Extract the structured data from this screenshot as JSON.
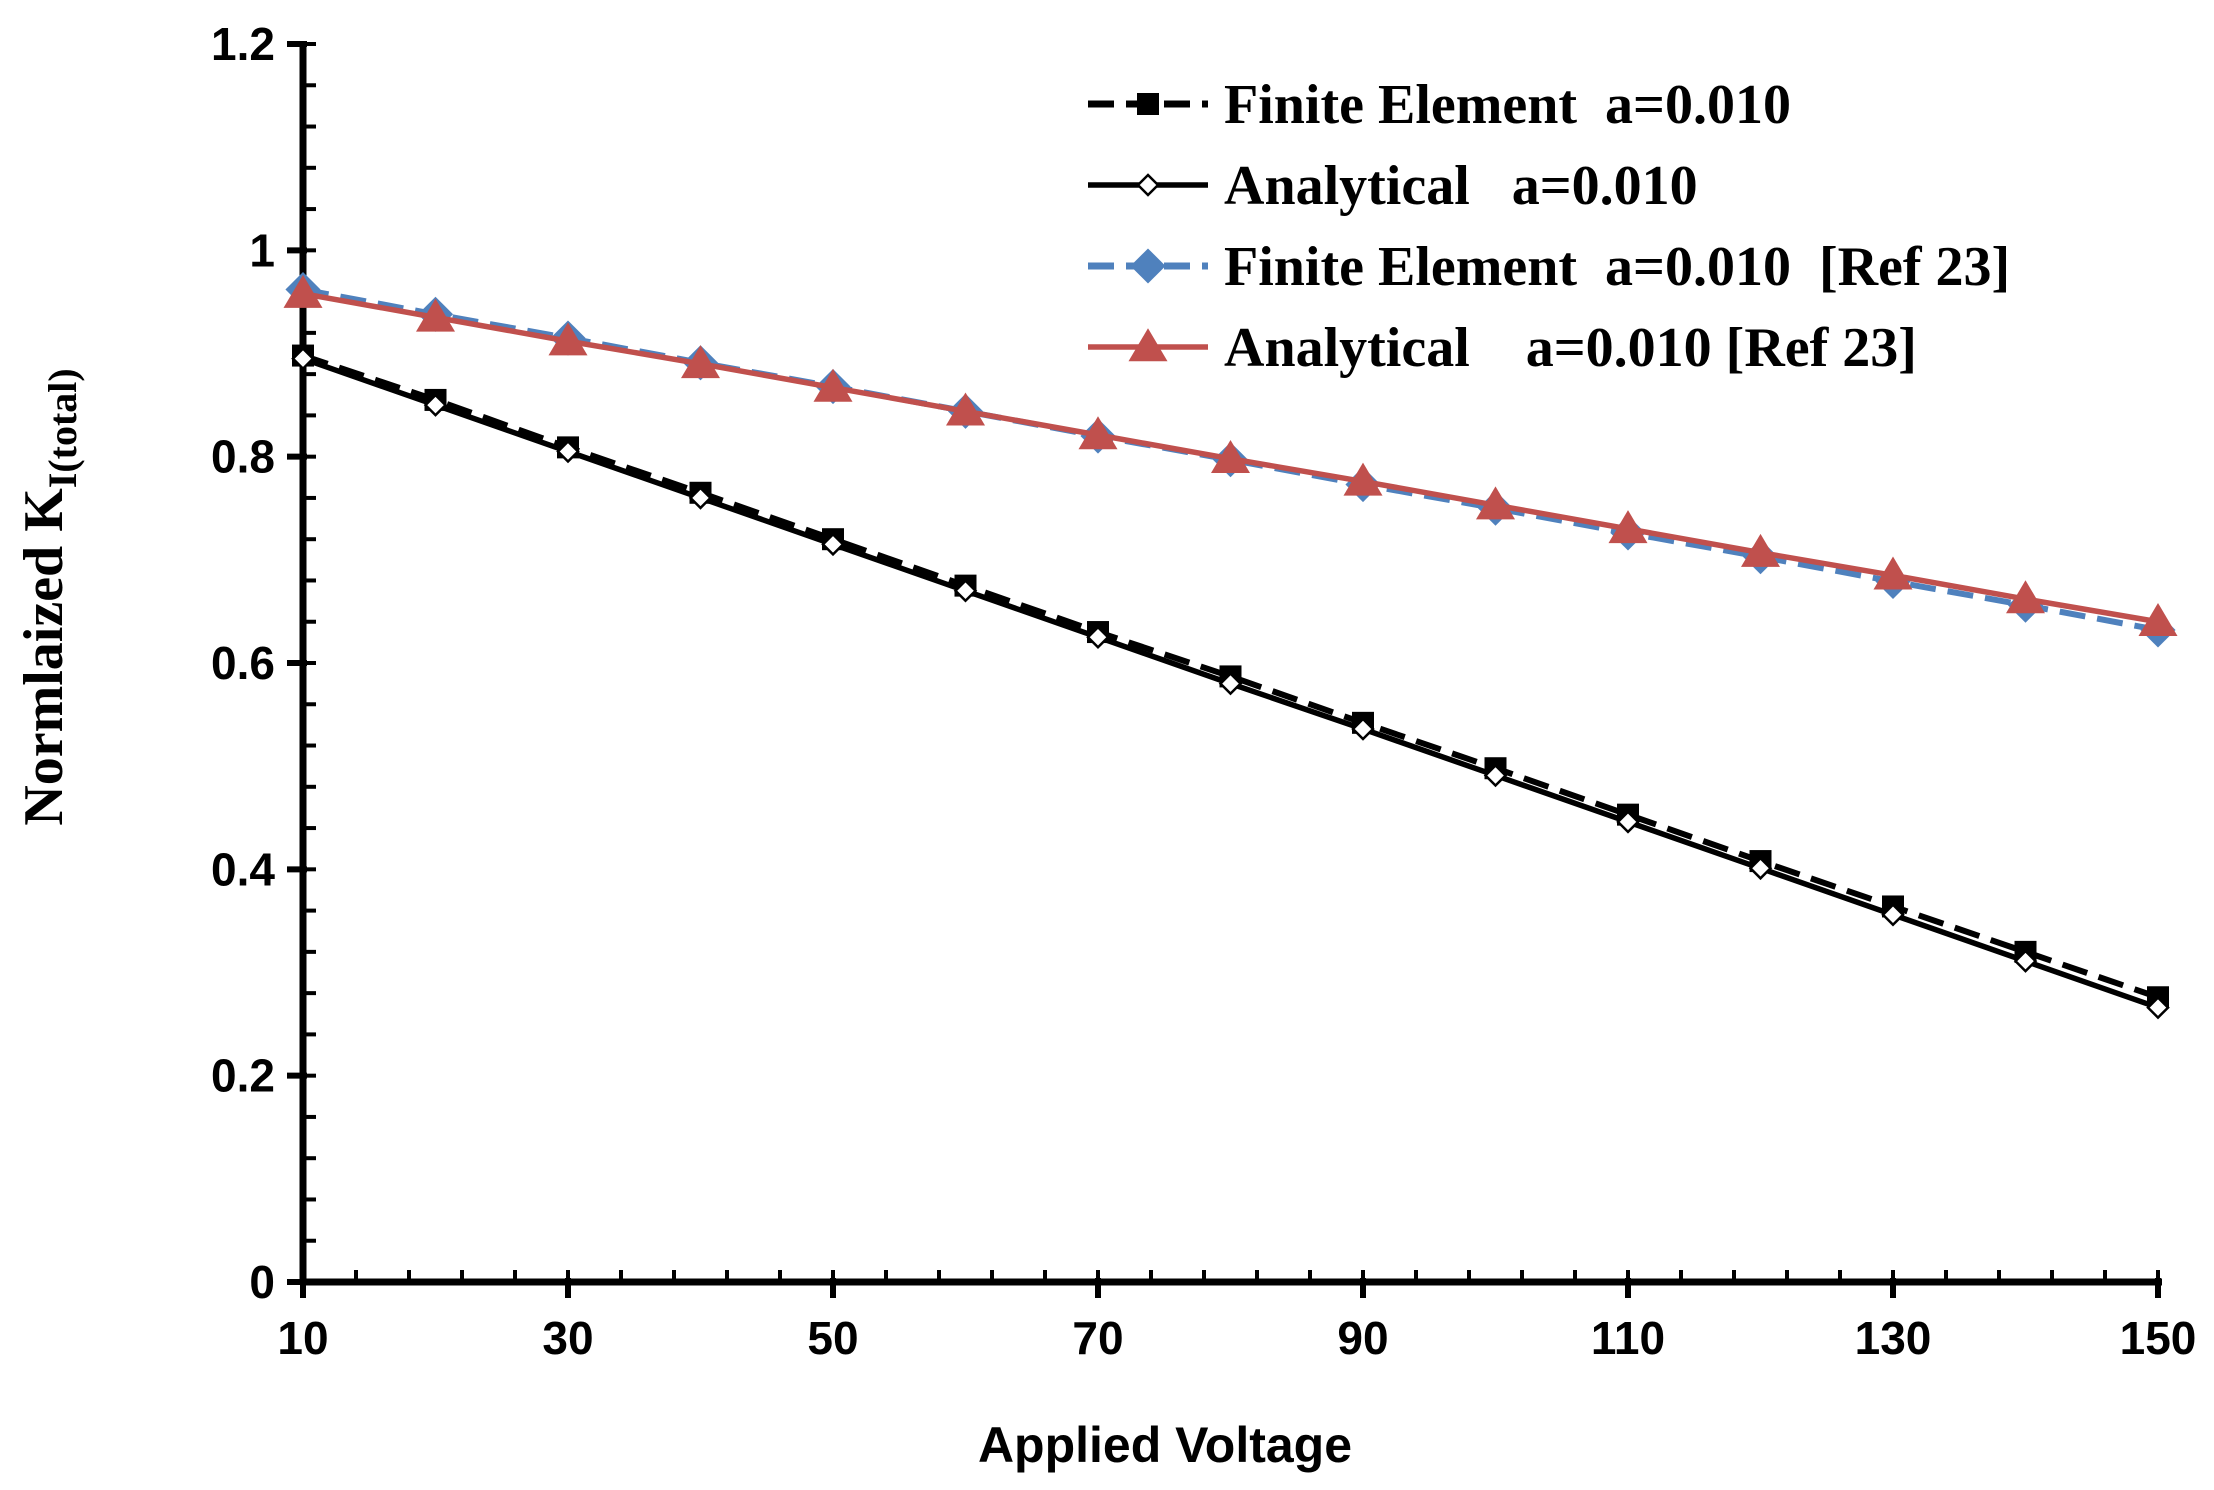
{
  "chart_data": {
    "type": "line",
    "title": "",
    "xlabel": "Applied Voltage",
    "ylabel": {
      "main": "Normlaized  K",
      "subscript": "I(total)"
    },
    "xlim": [
      10,
      150
    ],
    "ylim": [
      0,
      1.2
    ],
    "x_ticks": [
      "10",
      "30",
      "50",
      "70",
      "90",
      "110",
      "130",
      "150"
    ],
    "y_ticks": [
      "0",
      "0.2",
      "0.4",
      "0.6",
      "0.8",
      "1",
      "1.2"
    ],
    "x": [
      10,
      20,
      30,
      40,
      50,
      60,
      70,
      80,
      90,
      100,
      110,
      120,
      130,
      140,
      150
    ],
    "series": [
      {
        "name": "Finite Element  a=0.010",
        "color": "#000000",
        "style": "dashed",
        "marker": "square",
        "values": [
          0.898,
          0.855,
          0.809,
          0.765,
          0.72,
          0.675,
          0.63,
          0.587,
          0.542,
          0.498,
          0.453,
          0.408,
          0.364,
          0.32,
          0.276
        ]
      },
      {
        "name": "Analytical   a=0.010",
        "color": "#000000",
        "style": "solid",
        "marker": "diamond-open",
        "values": [
          0.895,
          0.85,
          0.805,
          0.76,
          0.715,
          0.67,
          0.625,
          0.58,
          0.536,
          0.491,
          0.446,
          0.401,
          0.356,
          0.311,
          0.266
        ]
      },
      {
        "name": "Finite Element  a=0.010  [Ref 23]",
        "color": "#4f81bd",
        "style": "dashed",
        "marker": "diamond",
        "values": [
          0.962,
          0.938,
          0.915,
          0.891,
          0.868,
          0.844,
          0.82,
          0.797,
          0.773,
          0.75,
          0.726,
          0.703,
          0.679,
          0.656,
          0.632
        ]
      },
      {
        "name": "Analytical    a=0.010 [Ref 23]",
        "color": "#c0504d",
        "style": "solid",
        "marker": "triangle",
        "values": [
          0.958,
          0.935,
          0.912,
          0.89,
          0.867,
          0.844,
          0.821,
          0.798,
          0.776,
          0.753,
          0.73,
          0.707,
          0.685,
          0.662,
          0.64
        ]
      }
    ],
    "legend_position": "top-right",
    "grid": false
  }
}
